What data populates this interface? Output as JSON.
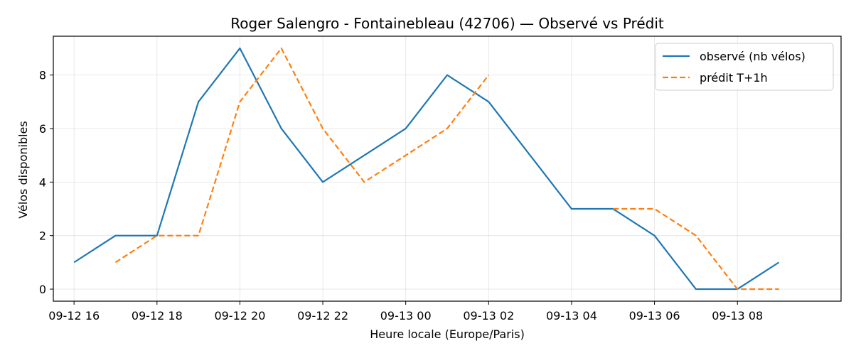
{
  "chart_data": {
    "type": "line",
    "title": "Roger Salengro - Fontainebleau (42706) — Observé vs Prédit",
    "xlabel": "Heure locale (Europe/Paris)",
    "ylabel": "Vélos disponibles",
    "x_ticks": [
      "09-12 16",
      "09-12 18",
      "09-12 20",
      "09-12 22",
      "09-13 00",
      "09-13 02",
      "09-13 04",
      "09-13 06",
      "09-13 08"
    ],
    "y_ticks": [
      "0",
      "2",
      "4",
      "6",
      "8"
    ],
    "xlim": [
      "2025-09-12T15:30",
      "2025-09-13T10:30"
    ],
    "ylim": [
      -0.45,
      9.45
    ],
    "grid": true,
    "legend_position": "top-right",
    "series": [
      {
        "name": "observé (nb vélos)",
        "color": "#1f77b4",
        "style": "solid",
        "points": [
          {
            "x": "2025-09-12T16:00",
            "y": 1
          },
          {
            "x": "2025-09-12T17:00",
            "y": 2
          },
          {
            "x": "2025-09-12T18:00",
            "y": 2
          },
          {
            "x": "2025-09-12T19:00",
            "y": 7
          },
          {
            "x": "2025-09-12T20:00",
            "y": 9
          },
          {
            "x": "2025-09-12T21:00",
            "y": 6
          },
          {
            "x": "2025-09-12T22:00",
            "y": 4
          },
          {
            "x": "2025-09-12T23:00",
            "y": 5
          },
          {
            "x": "2025-09-13T00:00",
            "y": 6
          },
          {
            "x": "2025-09-13T01:00",
            "y": 8
          },
          {
            "x": "2025-09-13T02:00",
            "y": 7
          },
          {
            "x": "2025-09-13T03:00",
            "y": 5
          },
          {
            "x": "2025-09-13T04:00",
            "y": 3
          },
          {
            "x": "2025-09-13T05:00",
            "y": 3
          },
          {
            "x": "2025-09-13T06:00",
            "y": 2
          },
          {
            "x": "2025-09-13T07:00",
            "y": 0
          },
          {
            "x": "2025-09-13T08:00",
            "y": 0
          },
          {
            "x": "2025-09-13T09:00",
            "y": 1
          }
        ]
      },
      {
        "name": "prédit T+1h",
        "color": "#ff7f0e",
        "style": "dashed",
        "segments": [
          [
            {
              "x": "2025-09-12T17:00",
              "y": 1
            },
            {
              "x": "2025-09-12T18:00",
              "y": 2
            },
            {
              "x": "2025-09-12T19:00",
              "y": 2
            },
            {
              "x": "2025-09-12T20:00",
              "y": 7
            },
            {
              "x": "2025-09-12T21:00",
              "y": 9
            },
            {
              "x": "2025-09-12T22:00",
              "y": 6
            },
            {
              "x": "2025-09-12T23:00",
              "y": 4
            },
            {
              "x": "2025-09-13T00:00",
              "y": 5
            },
            {
              "x": "2025-09-13T01:00",
              "y": 6
            },
            {
              "x": "2025-09-13T02:00",
              "y": 8
            }
          ],
          [
            {
              "x": "2025-09-13T05:00",
              "y": 3
            },
            {
              "x": "2025-09-13T06:00",
              "y": 3
            },
            {
              "x": "2025-09-13T07:00",
              "y": 2
            },
            {
              "x": "2025-09-13T08:00",
              "y": 0
            },
            {
              "x": "2025-09-13T09:00",
              "y": 0
            }
          ]
        ]
      }
    ]
  }
}
